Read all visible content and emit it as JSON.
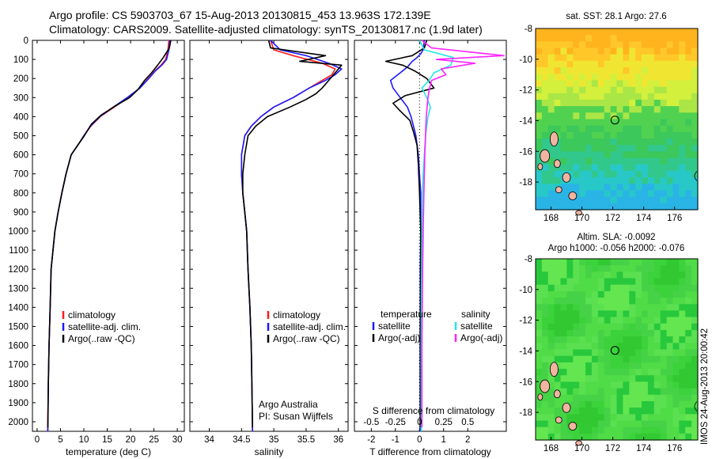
{
  "header": {
    "line1": "Argo profile: CS 5903703_67 15-Aug-2013 20130815_453 13.963S 172.139E",
    "line2": "Climatology: CARS2009. Satellite-adjusted climatology: synTS_20130817.nc (1.9d later)"
  },
  "colors": {
    "climatology": "#ff1a1a",
    "satellite": "#1a1aff",
    "argo": "#000000",
    "sal_satellite": "#22e6e6",
    "sal_argo": "#ff22ff"
  },
  "depth_axis": {
    "ticks": [
      0,
      100,
      200,
      300,
      400,
      500,
      600,
      700,
      800,
      900,
      1000,
      1100,
      1200,
      1300,
      1400,
      1500,
      1600,
      1700,
      1800,
      1900,
      2000
    ],
    "range": [
      0,
      2050
    ]
  },
  "chart_data": [
    {
      "type": "line",
      "panel": "temperature",
      "xlabel": "temperature (deg C)",
      "xlim": [
        -1,
        31.5
      ],
      "ylim": [
        2050,
        0
      ],
      "xticks": [
        0,
        5,
        10,
        15,
        20,
        25,
        30
      ],
      "legend": [
        "climatology",
        "satellite-adj. clim.",
        "Argo(..raw -QC)"
      ],
      "series": [
        {
          "name": "climatology",
          "color": "climatology",
          "x": [
            28.2,
            28.0,
            27.5,
            26.5,
            25.2,
            23.8,
            22.0,
            19.5,
            16.5,
            13.5,
            11.5,
            10.0,
            8.7,
            7.3,
            6.2,
            5.3,
            4.5,
            3.8,
            3.4,
            3.0,
            2.8,
            2.55,
            2.4,
            2.25
          ],
          "y": [
            0,
            50,
            100,
            130,
            160,
            200,
            250,
            300,
            350,
            400,
            450,
            500,
            550,
            600,
            700,
            800,
            900,
            1000,
            1100,
            1200,
            1400,
            1600,
            1800,
            2050
          ]
        },
        {
          "name": "satellite-adj. clim.",
          "color": "satellite",
          "x": [
            28.4,
            28.2,
            27.7,
            26.7,
            25.3,
            23.9,
            22.0,
            19.3,
            16.3,
            13.4,
            11.4,
            10.0,
            8.7,
            7.3,
            6.2,
            5.3,
            4.5,
            3.8,
            3.4,
            3.0,
            2.8,
            2.55,
            2.4,
            2.3
          ],
          "y": [
            0,
            50,
            100,
            130,
            160,
            200,
            250,
            300,
            350,
            400,
            450,
            500,
            550,
            600,
            700,
            800,
            900,
            1000,
            1100,
            1200,
            1400,
            1600,
            1800,
            2050
          ]
        },
        {
          "name": "Argo(..raw -QC)",
          "color": "argo",
          "x": [
            28.6,
            28.3,
            27.0,
            25.8,
            24.5,
            23.0,
            21.5,
            19.8,
            17.0,
            13.8,
            11.6,
            10.1,
            8.7,
            7.3,
            6.2,
            5.3,
            4.5,
            3.8,
            3.4,
            3.0,
            2.8,
            2.55,
            2.4,
            2.3
          ],
          "y": [
            0,
            40,
            90,
            130,
            170,
            210,
            260,
            300,
            340,
            390,
            440,
            500,
            550,
            600,
            700,
            800,
            900,
            1000,
            1100,
            1200,
            1400,
            1600,
            1800,
            2030
          ]
        }
      ]
    },
    {
      "type": "line",
      "panel": "salinity",
      "xlabel": "salinity",
      "xlim": [
        33.7,
        36.15
      ],
      "ylim": [
        2050,
        0
      ],
      "xticks": [
        34,
        34.5,
        35,
        35.5,
        36
      ],
      "legend": [
        "climatology",
        "satellite-adj. clim.",
        "Argo(..raw -QC)"
      ],
      "annotation": [
        "Argo Australia",
        "PI: Susan Wijffels"
      ],
      "series": [
        {
          "name": "climatology",
          "color": "climatology",
          "x": [
            34.95,
            35.0,
            35.3,
            35.75,
            35.95,
            35.9,
            35.75,
            35.55,
            35.3,
            35.0,
            34.8,
            34.65,
            34.55,
            34.5,
            34.5,
            34.52,
            34.55,
            34.58,
            34.6,
            34.63,
            34.65,
            34.66,
            34.67
          ],
          "y": [
            0,
            50,
            80,
            120,
            150,
            180,
            210,
            250,
            300,
            350,
            400,
            450,
            500,
            600,
            700,
            800,
            900,
            1000,
            1200,
            1400,
            1600,
            1800,
            2050
          ]
        },
        {
          "name": "satellite-adj. clim.",
          "color": "satellite",
          "x": [
            34.95,
            35.1,
            35.5,
            35.85,
            36.05,
            35.95,
            35.8,
            35.55,
            35.3,
            35.0,
            34.8,
            34.65,
            34.55,
            34.5,
            34.5,
            34.52,
            34.55,
            34.58,
            34.6,
            34.63,
            34.65,
            34.66,
            34.67
          ],
          "y": [
            0,
            50,
            80,
            120,
            150,
            180,
            210,
            250,
            300,
            350,
            400,
            450,
            500,
            600,
            700,
            800,
            900,
            1000,
            1200,
            1400,
            1600,
            1800,
            2050
          ]
        },
        {
          "name": "Argo(..raw -QC)",
          "color": "argo",
          "x": [
            34.92,
            34.95,
            35.8,
            35.4,
            36.05,
            35.95,
            35.85,
            35.75,
            35.65,
            35.5,
            35.25,
            34.9,
            34.72,
            34.6,
            34.55,
            34.52,
            34.52,
            34.55,
            34.58,
            34.6,
            34.63,
            34.65,
            34.66,
            34.67
          ],
          "y": [
            0,
            40,
            80,
            110,
            130,
            170,
            210,
            250,
            280,
            310,
            350,
            400,
            450,
            500,
            600,
            700,
            800,
            900,
            1000,
            1200,
            1400,
            1600,
            1800,
            2030
          ]
        }
      ]
    },
    {
      "type": "line",
      "panel": "differences",
      "xlabel": "T difference from climatology",
      "xlabel_top": "S difference from climatology",
      "xlim": [
        -2.7,
        3.6
      ],
      "ylim": [
        2050,
        0
      ],
      "xticks": [
        -2,
        -1,
        0,
        1,
        2
      ],
      "xticks_s": [
        -0.5,
        -0.25,
        0,
        0.25,
        0.5
      ],
      "legend_temperature": [
        "temperature",
        "satellite",
        "Argo(-adj)"
      ],
      "legend_salinity": [
        "salinity",
        "satellite",
        "Argo(-adj)"
      ],
      "series": [
        {
          "name": "satellite",
          "color": "satellite",
          "x": [
            0.2,
            0.15,
            0.05,
            -0.1,
            -0.3,
            -0.5,
            -0.8,
            -1.2,
            -1.1,
            -0.8,
            -0.5,
            -0.35,
            -0.25,
            -0.15,
            -0.05,
            0.0,
            0.05,
            0.05,
            0.03,
            0.03,
            0.03,
            0.03
          ],
          "y": [
            0,
            50,
            70,
            90,
            110,
            140,
            170,
            210,
            250,
            300,
            350,
            400,
            450,
            500,
            600,
            700,
            800,
            1000,
            1200,
            1500,
            1800,
            2050
          ]
        },
        {
          "name": "Argo(-adj)",
          "color": "argo",
          "x": [
            0.3,
            0.2,
            -0.3,
            -1.4,
            -0.7,
            -0.2,
            0.3,
            0.6,
            -0.6,
            -1.1,
            -0.8,
            -0.4,
            -0.25,
            -0.1,
            -0.05,
            0.0,
            0.05,
            0.05,
            0.03,
            0.03,
            0.03
          ],
          "y": [
            0,
            40,
            80,
            110,
            130,
            160,
            200,
            250,
            290,
            330,
            370,
            420,
            480,
            550,
            650,
            800,
            1000,
            1200,
            1500,
            1800,
            2030
          ]
        },
        {
          "name": "satellite",
          "color": "sal_satellite",
          "x": [
            0.0,
            0.2,
            1.4,
            1.3,
            0.6,
            0.4,
            0.1,
            0.3,
            0.45,
            0.35,
            0.25,
            0.2,
            0.15,
            0.12,
            0.1,
            0.08,
            0.07,
            0.07
          ],
          "y": [
            0,
            50,
            90,
            130,
            170,
            210,
            250,
            300,
            350,
            400,
            500,
            600,
            700,
            800,
            1000,
            1300,
            1600,
            2050
          ]
        },
        {
          "name": "Argo(-adj)",
          "color": "sal_argo",
          "x": [
            0.1,
            0.5,
            3.5,
            0.7,
            2.3,
            0.9,
            1.1,
            0.5,
            0.4,
            0.35,
            0.28,
            0.25,
            0.22,
            0.2,
            0.18,
            0.15,
            0.12,
            0.1,
            0.1
          ],
          "y": [
            0,
            40,
            80,
            100,
            120,
            150,
            180,
            210,
            260,
            300,
            400,
            500,
            600,
            700,
            800,
            1000,
            1300,
            1600,
            2030
          ]
        }
      ]
    },
    {
      "type": "heatmap",
      "panel": "sst",
      "title": "sat. SST: 28.1 Argo: 27.6",
      "xlim": [
        167,
        177.5
      ],
      "ylim": [
        -19.8,
        -8
      ],
      "xticks": [
        168,
        170,
        172,
        174,
        176
      ],
      "yticks": [
        -8,
        -10,
        -12,
        -14,
        -16,
        -18
      ],
      "marker": {
        "lon": 172.139,
        "lat": -13.963
      }
    },
    {
      "type": "heatmap",
      "panel": "sla",
      "title": "Altim. SLA: -0.0092",
      "subtitle": "Argo h1000: -0.056 h2000: -0.076",
      "xlim": [
        167,
        177.5
      ],
      "ylim": [
        -19.8,
        -8
      ],
      "xticks": [
        168,
        170,
        172,
        174,
        176
      ],
      "yticks": [
        -8,
        -10,
        -12,
        -14,
        -16,
        -18
      ],
      "marker": {
        "lon": 172.139,
        "lat": -13.963
      }
    }
  ],
  "credit": "IMOS 24-Aug-2013 20:00:42"
}
